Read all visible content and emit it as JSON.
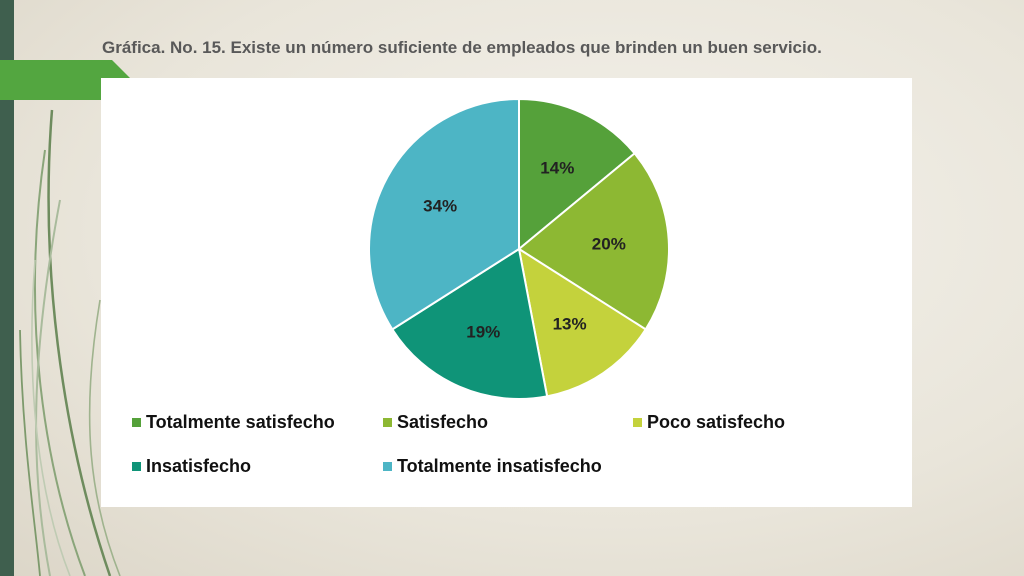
{
  "slide": {
    "title": "Gráfica. No. 15. Existe un número suficiente de empleados que brinden un buen servicio."
  },
  "colors": {
    "left_bar": "#3f5f4e",
    "accent_bar": "#53a640",
    "background": "#ece8df"
  },
  "chart_data": {
    "type": "pie",
    "title": "",
    "legend_placement": "bottom",
    "categories": [
      "Totalmente satisfecho",
      "Satisfecho",
      "Poco satisfecho",
      "Insatisfecho",
      "Totalmente insatisfecho"
    ],
    "values": [
      14,
      20,
      13,
      19,
      34
    ],
    "labels": [
      "14%",
      "20%",
      "13%",
      "19%",
      "34%"
    ],
    "colors": [
      "#55a13a",
      "#8db833",
      "#c4d23c",
      "#0f9478",
      "#4db5c5"
    ]
  }
}
